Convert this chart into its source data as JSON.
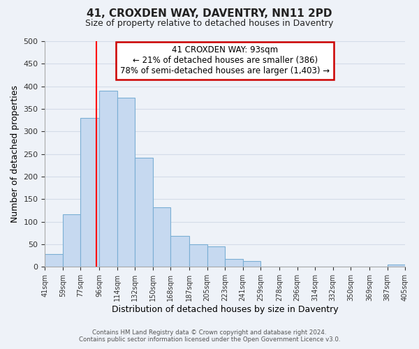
{
  "title": "41, CROXDEN WAY, DAVENTRY, NN11 2PD",
  "subtitle": "Size of property relative to detached houses in Daventry",
  "xlabel": "Distribution of detached houses by size in Daventry",
  "ylabel": "Number of detached properties",
  "bar_left_edges": [
    41,
    59,
    77,
    96,
    114,
    132,
    150,
    168,
    187,
    205,
    223,
    241,
    259,
    278,
    296,
    314,
    332,
    350,
    369,
    387
  ],
  "bar_widths": [
    18,
    18,
    19,
    18,
    18,
    18,
    18,
    19,
    18,
    18,
    18,
    18,
    19,
    18,
    18,
    18,
    18,
    19,
    18,
    18
  ],
  "bar_heights": [
    28,
    117,
    330,
    390,
    375,
    242,
    132,
    68,
    50,
    46,
    18,
    13,
    0,
    0,
    0,
    0,
    0,
    0,
    0,
    5
  ],
  "bar_color": "#c6d9f0",
  "bar_edge_color": "#7bafd4",
  "tick_labels": [
    "41sqm",
    "59sqm",
    "77sqm",
    "96sqm",
    "114sqm",
    "132sqm",
    "150sqm",
    "168sqm",
    "187sqm",
    "205sqm",
    "223sqm",
    "241sqm",
    "259sqm",
    "278sqm",
    "296sqm",
    "314sqm",
    "332sqm",
    "350sqm",
    "369sqm",
    "387sqm",
    "405sqm"
  ],
  "tick_positions": [
    41,
    59,
    77,
    96,
    114,
    132,
    150,
    168,
    187,
    205,
    223,
    241,
    259,
    278,
    296,
    314,
    332,
    350,
    369,
    387,
    405
  ],
  "ylim": [
    0,
    500
  ],
  "yticks": [
    0,
    50,
    100,
    150,
    200,
    250,
    300,
    350,
    400,
    450,
    500
  ],
  "property_line_x": 93,
  "annotation_line1": "41 CROXDEN WAY: 93sqm",
  "annotation_line2": "← 21% of detached houses are smaller (386)",
  "annotation_line3": "78% of semi-detached houses are larger (1,403) →",
  "annotation_box_color": "#ffffff",
  "annotation_box_edge": "#cc0000",
  "footer_line1": "Contains HM Land Registry data © Crown copyright and database right 2024.",
  "footer_line2": "Contains public sector information licensed under the Open Government Licence v3.0.",
  "grid_color": "#d4dce8",
  "background_color": "#eef2f8"
}
